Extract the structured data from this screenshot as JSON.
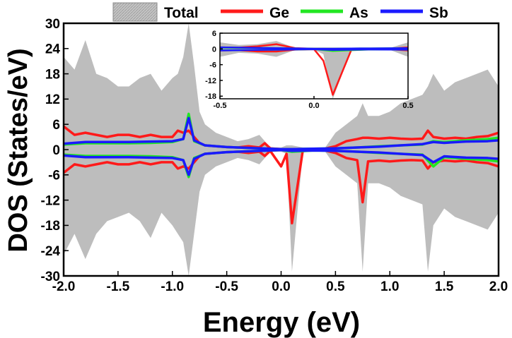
{
  "chart_data": {
    "type": "line",
    "xlabel": "Energy (eV)",
    "ylabel": "DOS (States/eV)",
    "xlim": [
      -2.0,
      2.0
    ],
    "ylim": [
      -30,
      30
    ],
    "x_ticks": [
      "-2.0",
      "-1.5",
      "-1.0",
      "-0.5",
      "0.0",
      "0.5",
      "1.0",
      "1.5",
      "2.0"
    ],
    "y_ticks": [
      "30",
      "24",
      "18",
      "12",
      "6",
      "0",
      "-6",
      "-12",
      "-18",
      "-24",
      "-30"
    ],
    "legend_position": "top",
    "colors": {
      "Total": "#bdbdbd",
      "Ge": "#ff1a1a",
      "As": "#22e622",
      "Sb": "#1a1aff"
    },
    "series": [
      {
        "name": "Total",
        "style": "filled-area-symmetric",
        "x": [
          -2.0,
          -1.9,
          -1.8,
          -1.7,
          -1.6,
          -1.5,
          -1.4,
          -1.3,
          -1.2,
          -1.1,
          -1.0,
          -0.95,
          -0.9,
          -0.85,
          -0.8,
          -0.75,
          -0.7,
          -0.6,
          -0.5,
          -0.4,
          -0.3,
          -0.2,
          -0.1,
          0.0,
          0.05,
          0.1,
          0.2,
          0.3,
          0.4,
          0.5,
          0.6,
          0.7,
          0.75,
          0.8,
          0.9,
          1.0,
          1.1,
          1.2,
          1.3,
          1.35,
          1.4,
          1.5,
          1.6,
          1.7,
          1.8,
          1.9,
          2.0
        ],
        "upper": [
          22,
          19,
          26,
          18,
          17,
          15,
          15,
          17,
          18,
          14,
          17,
          18,
          22,
          30,
          20,
          9,
          6,
          4,
          3,
          2,
          2.5,
          3.5,
          0.5,
          0.5,
          1,
          1,
          0.5,
          0.4,
          0.3,
          4,
          6,
          8,
          11,
          8,
          8,
          9,
          11,
          12,
          13,
          15,
          18,
          14,
          16,
          17,
          18,
          19,
          15
        ],
        "lower": [
          -25,
          -20,
          -26,
          -20,
          -17,
          -16,
          -15,
          -17,
          -21,
          -15,
          -18,
          -20,
          -22,
          -30,
          -20,
          -10,
          -6,
          -4,
          -3,
          -2,
          -2.5,
          -3.5,
          -0.5,
          -0.5,
          -1,
          -29,
          -0.5,
          -0.4,
          -0.3,
          -4,
          -6,
          -8,
          -29,
          -8,
          -8,
          -9,
          -11,
          -12,
          -13,
          -29,
          -18,
          -14,
          -16,
          -17,
          -18,
          -19,
          -15
        ]
      },
      {
        "name": "Ge",
        "x": [
          -2.0,
          -1.9,
          -1.8,
          -1.7,
          -1.6,
          -1.5,
          -1.4,
          -1.3,
          -1.2,
          -1.1,
          -1.0,
          -0.95,
          -0.9,
          -0.85,
          -0.8,
          -0.75,
          -0.7,
          -0.6,
          -0.5,
          -0.4,
          -0.3,
          -0.2,
          -0.15,
          -0.1,
          0.0,
          0.05,
          0.1,
          0.2,
          0.3,
          0.4,
          0.5,
          0.6,
          0.7,
          0.75,
          0.8,
          0.9,
          1.0,
          1.1,
          1.2,
          1.3,
          1.35,
          1.4,
          1.5,
          1.6,
          1.7,
          1.8,
          1.9,
          2.0
        ],
        "upper": [
          5.5,
          3.5,
          4.0,
          3.5,
          3.0,
          3.5,
          3.5,
          3.0,
          3.5,
          3.0,
          3.0,
          4.5,
          4.0,
          4.5,
          3.0,
          1.5,
          1.0,
          0.8,
          0.6,
          0.5,
          0.8,
          0.5,
          1.5,
          0.3,
          0.1,
          0.1,
          0.1,
          0.1,
          0.1,
          0.2,
          0.8,
          2.0,
          2.5,
          2.8,
          2.8,
          2.6,
          2.8,
          2.6,
          2.5,
          2.6,
          4.5,
          3.0,
          2.6,
          2.8,
          2.6,
          3.0,
          3.2,
          4.0
        ],
        "lower": [
          -5.5,
          -3.5,
          -4.0,
          -3.5,
          -3.0,
          -3.5,
          -3.5,
          -3.0,
          -3.5,
          -3.0,
          -3.0,
          -4.5,
          -4.0,
          -4.5,
          -3.0,
          -1.5,
          -1.0,
          -0.8,
          -0.6,
          -0.5,
          -0.8,
          -0.5,
          -1.5,
          -0.3,
          -4.0,
          -1.0,
          -17.5,
          -0.1,
          -0.1,
          -0.2,
          -0.8,
          -2.0,
          -2.5,
          -12.5,
          -2.8,
          -2.6,
          -2.8,
          -2.6,
          -2.5,
          -2.6,
          -4.5,
          -3.0,
          -2.6,
          -2.8,
          -2.6,
          -3.0,
          -3.2,
          -4.0
        ]
      },
      {
        "name": "As",
        "x": [
          -2.0,
          -1.8,
          -1.6,
          -1.4,
          -1.2,
          -1.0,
          -0.9,
          -0.85,
          -0.8,
          -0.7,
          -0.5,
          -0.3,
          -0.1,
          0.0,
          0.1,
          0.3,
          0.5,
          0.7,
          0.9,
          1.1,
          1.3,
          1.4,
          1.5,
          1.7,
          1.9,
          2.0
        ],
        "upper": [
          1.2,
          1.5,
          1.5,
          1.5,
          1.6,
          1.8,
          2.5,
          8.5,
          2.0,
          1.0,
          0.6,
          0.4,
          0.2,
          0.1,
          0.1,
          0.2,
          0.3,
          0.5,
          0.8,
          1.0,
          1.2,
          2.0,
          1.8,
          2.2,
          2.5,
          2.8
        ],
        "lower": [
          -1.2,
          -1.5,
          -1.5,
          -1.5,
          -1.6,
          -1.8,
          -2.5,
          -6.5,
          -2.0,
          -1.0,
          -0.6,
          -0.4,
          -0.2,
          -0.1,
          -0.5,
          -0.2,
          -0.3,
          -0.5,
          -0.8,
          -1.0,
          -1.2,
          -4.0,
          -1.8,
          -2.2,
          -2.5,
          -2.8
        ]
      },
      {
        "name": "Sb",
        "x": [
          -2.0,
          -1.8,
          -1.6,
          -1.4,
          -1.2,
          -1.0,
          -0.9,
          -0.85,
          -0.8,
          -0.7,
          -0.5,
          -0.3,
          -0.1,
          0.0,
          0.1,
          0.3,
          0.5,
          0.7,
          0.9,
          1.1,
          1.3,
          1.4,
          1.5,
          1.7,
          1.9,
          2.0
        ],
        "upper": [
          1.4,
          1.8,
          1.8,
          1.8,
          1.9,
          2.0,
          2.5,
          7.5,
          2.2,
          1.0,
          0.6,
          0.4,
          0.2,
          0.1,
          0.1,
          0.2,
          0.3,
          0.5,
          0.7,
          1.0,
          1.3,
          1.8,
          1.6,
          1.9,
          2.0,
          2.2
        ],
        "lower": [
          -1.4,
          -1.8,
          -1.8,
          -1.8,
          -1.9,
          -2.0,
          -2.5,
          -6.0,
          -2.2,
          -1.0,
          -0.6,
          -0.4,
          -0.2,
          -0.1,
          -0.3,
          -0.2,
          -0.3,
          -0.5,
          -0.7,
          -1.0,
          -1.3,
          -3.0,
          -1.6,
          -1.9,
          -2.0,
          -2.2
        ]
      }
    ],
    "inset": {
      "xlim": [
        -0.5,
        0.5
      ],
      "ylim": [
        -19,
        6
      ],
      "x_ticks": [
        "-0.5",
        "0.0",
        "0.5"
      ],
      "y_ticks": [
        "6",
        "0",
        "-6",
        "-12",
        "-18"
      ],
      "series": [
        {
          "name": "Total",
          "x": [
            -0.5,
            -0.4,
            -0.3,
            -0.2,
            -0.1,
            0.0,
            0.05,
            0.1,
            0.2,
            0.3,
            0.4,
            0.5
          ],
          "upper": [
            2.5,
            1.5,
            1.8,
            3.0,
            0.4,
            0.3,
            0.5,
            0.4,
            0.3,
            0.3,
            0.3,
            2.5
          ],
          "lower": [
            -3.0,
            -1.5,
            -1.8,
            -3.0,
            -0.4,
            -0.3,
            -2.0,
            -19.0,
            -0.3,
            -0.3,
            -0.3,
            -3.0
          ]
        },
        {
          "name": "Ge",
          "x": [
            -0.5,
            -0.4,
            -0.3,
            -0.2,
            -0.1,
            0.0,
            0.05,
            0.1,
            0.2,
            0.3,
            0.4,
            0.5
          ],
          "upper": [
            0.6,
            0.5,
            1.0,
            1.8,
            0.3,
            0.1,
            0.1,
            0.1,
            0.1,
            0.1,
            0.1,
            0.6
          ],
          "lower": [
            -0.6,
            -0.5,
            -1.0,
            -1.0,
            -0.3,
            -0.1,
            -4.5,
            -17.5,
            -0.1,
            -0.1,
            -0.1,
            -0.6
          ]
        },
        {
          "name": "As",
          "x": [
            -0.5,
            -0.3,
            -0.1,
            0.0,
            0.1,
            0.3,
            0.5
          ],
          "upper": [
            0.5,
            0.4,
            0.2,
            0.1,
            0.1,
            0.2,
            0.3
          ],
          "lower": [
            -0.5,
            -0.4,
            -0.2,
            -0.1,
            -0.8,
            -0.2,
            -0.3
          ]
        },
        {
          "name": "Sb",
          "x": [
            -0.5,
            -0.3,
            -0.1,
            0.0,
            0.1,
            0.3,
            0.5
          ],
          "upper": [
            0.6,
            0.4,
            0.2,
            0.1,
            0.1,
            0.2,
            0.3
          ],
          "lower": [
            -0.6,
            -0.4,
            -0.2,
            -0.1,
            -0.4,
            -0.2,
            -0.3
          ]
        }
      ]
    }
  }
}
